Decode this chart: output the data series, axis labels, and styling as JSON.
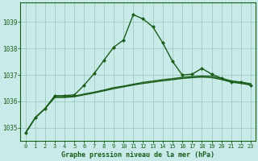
{
  "title": "Graphe pression niveau de la mer (hPa)",
  "bg_color": "#c8eae8",
  "grid_color": "#a0ccbe",
  "line_color": "#1a5e1a",
  "x_ticks": [
    0,
    1,
    2,
    3,
    4,
    5,
    6,
    7,
    8,
    9,
    10,
    11,
    12,
    13,
    14,
    15,
    16,
    17,
    18,
    19,
    20,
    21,
    22,
    23
  ],
  "y_ticks": [
    1035,
    1036,
    1037,
    1038,
    1039
  ],
  "ylim": [
    1034.5,
    1039.75
  ],
  "xlim": [
    -0.5,
    23.5
  ],
  "series_main": [
    1034.8,
    1035.38,
    1035.73,
    1036.22,
    1036.22,
    1036.25,
    1036.62,
    1037.05,
    1037.55,
    1038.05,
    1038.32,
    1039.28,
    1039.12,
    1038.82,
    1038.22,
    1037.52,
    1037.0,
    1037.03,
    1037.25,
    1037.03,
    1036.88,
    1036.73,
    1036.73,
    1036.62
  ],
  "series_flat1": [
    1034.8,
    1035.38,
    1035.73,
    1036.15,
    1036.15,
    1036.18,
    1036.25,
    1036.32,
    1036.4,
    1036.48,
    1036.55,
    1036.62,
    1036.68,
    1036.73,
    1036.78,
    1036.82,
    1036.87,
    1036.9,
    1036.92,
    1036.9,
    1036.83,
    1036.73,
    1036.68,
    1036.62
  ],
  "series_flat2": [
    1034.8,
    1035.38,
    1035.73,
    1036.18,
    1036.18,
    1036.2,
    1036.28,
    1036.35,
    1036.43,
    1036.52,
    1036.58,
    1036.65,
    1036.72,
    1036.77,
    1036.82,
    1036.86,
    1036.91,
    1036.94,
    1036.96,
    1036.95,
    1036.87,
    1036.78,
    1036.73,
    1036.67
  ]
}
